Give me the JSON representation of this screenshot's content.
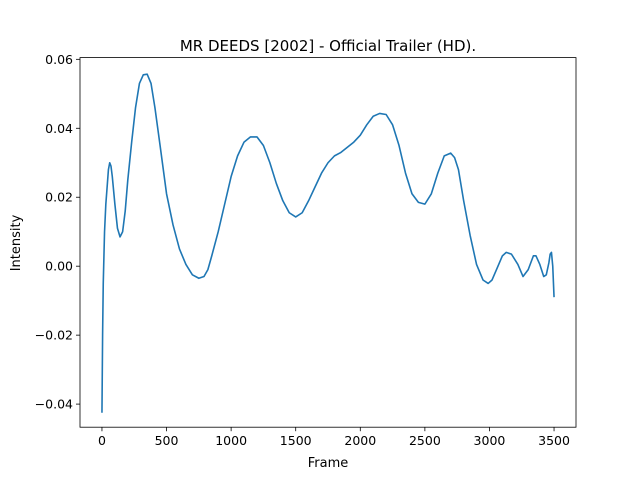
{
  "chart_data": {
    "type": "line",
    "title": "MR DEEDS [2002] - Official Trailer (HD).",
    "xlabel": "Frame",
    "ylabel": "Intensity",
    "xlim": [
      -170,
      3670
    ],
    "ylim": [
      -0.0467,
      0.0605
    ],
    "xticks": [
      0,
      500,
      1000,
      1500,
      2000,
      2500,
      3000,
      3500
    ],
    "yticks": [
      -0.04,
      -0.02,
      0.0,
      0.02,
      0.04,
      0.06
    ],
    "ytick_labels": [
      "−0.04",
      "−0.02",
      "0.00",
      "0.02",
      "0.04",
      "0.06"
    ],
    "line_color": "#1f77b4",
    "grid": false,
    "legend": "none",
    "series": [
      {
        "x": [
          0,
          5,
          10,
          20,
          30,
          40,
          50,
          60,
          70,
          80,
          100,
          120,
          140,
          160,
          180,
          200,
          230,
          260,
          290,
          320,
          350,
          380,
          410,
          450,
          500,
          550,
          600,
          650,
          700,
          750,
          790,
          820,
          850,
          900,
          950,
          1000,
          1050,
          1100,
          1150,
          1200,
          1250,
          1300,
          1350,
          1400,
          1450,
          1500,
          1550,
          1600,
          1650,
          1700,
          1750,
          1800,
          1850,
          1900,
          1950,
          2000,
          2050,
          2100,
          2150,
          2200,
          2250,
          2300,
          2350,
          2400,
          2450,
          2500,
          2550,
          2600,
          2650,
          2700,
          2730,
          2760,
          2800,
          2850,
          2900,
          2950,
          2990,
          3020,
          3060,
          3100,
          3130,
          3170,
          3220,
          3260,
          3300,
          3340,
          3360,
          3390,
          3420,
          3440,
          3460,
          3470,
          3480,
          3490,
          3500
        ],
        "y": [
          -0.0425,
          -0.02,
          -0.005,
          0.01,
          0.018,
          0.023,
          0.028,
          0.03,
          0.029,
          0.026,
          0.018,
          0.011,
          0.0085,
          0.01,
          0.016,
          0.025,
          0.036,
          0.046,
          0.053,
          0.0555,
          0.0557,
          0.053,
          0.046,
          0.035,
          0.021,
          0.012,
          0.005,
          0.0005,
          -0.0025,
          -0.0035,
          -0.003,
          -0.001,
          0.003,
          0.01,
          0.018,
          0.026,
          0.032,
          0.036,
          0.0375,
          0.0375,
          0.035,
          0.03,
          0.024,
          0.019,
          0.0155,
          0.0143,
          0.0155,
          0.019,
          0.023,
          0.027,
          0.03,
          0.032,
          0.033,
          0.0345,
          0.036,
          0.038,
          0.041,
          0.0435,
          0.0443,
          0.044,
          0.041,
          0.035,
          0.027,
          0.021,
          0.0185,
          0.018,
          0.021,
          0.027,
          0.032,
          0.0328,
          0.0315,
          0.028,
          0.019,
          0.009,
          0.0005,
          -0.004,
          -0.005,
          -0.004,
          -0.0005,
          0.003,
          0.004,
          0.0035,
          0.0005,
          -0.003,
          -0.001,
          0.003,
          0.003,
          0.0005,
          -0.003,
          -0.0025,
          0.001,
          0.0035,
          0.004,
          0.0,
          -0.009
        ]
      }
    ]
  }
}
